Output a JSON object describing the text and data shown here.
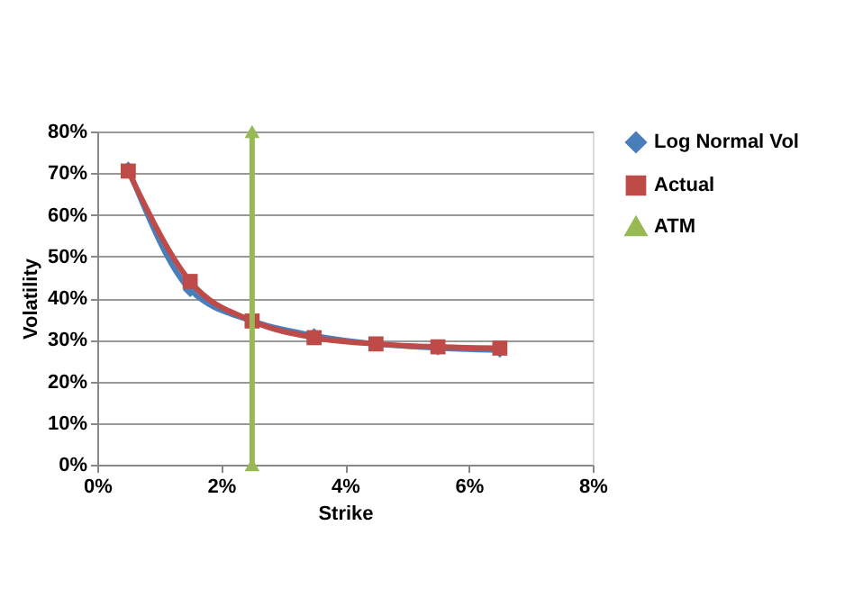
{
  "chart_data": {
    "type": "line",
    "xlabel": "Strike",
    "ylabel": "Volatility",
    "xlim": [
      0,
      8
    ],
    "xticks": [
      {
        "value": 0,
        "label": "0%"
      },
      {
        "value": 2,
        "label": "2%"
      },
      {
        "value": 4,
        "label": "4%"
      },
      {
        "value": 6,
        "label": "6%"
      },
      {
        "value": 8,
        "label": "8%"
      }
    ],
    "ylim": [
      0,
      80
    ],
    "yticks": [
      {
        "value": 0,
        "label": "0%"
      },
      {
        "value": 10,
        "label": "10%"
      },
      {
        "value": 20,
        "label": "20%"
      },
      {
        "value": 30,
        "label": "30%"
      },
      {
        "value": 40,
        "label": "40%"
      },
      {
        "value": 50,
        "label": "50%"
      },
      {
        "value": 60,
        "label": "60%"
      },
      {
        "value": 70,
        "label": "70%"
      },
      {
        "value": 80,
        "label": "80%"
      }
    ],
    "grid": "y",
    "legend": "right",
    "series": [
      {
        "name": "Log Normal Vol",
        "color": "#4a7ebb",
        "marker": "diamond",
        "x": [
          0.5,
          1.5,
          2.5,
          3.5,
          4.5,
          5.5,
          6.5
        ],
        "values": [
          71,
          42,
          34.5,
          31,
          29,
          28,
          27.5
        ]
      },
      {
        "name": "Actual",
        "color": "#be4b48",
        "marker": "square",
        "x": [
          0.5,
          1.5,
          2.5,
          3.5,
          4.5,
          5.5,
          6.5
        ],
        "values": [
          70.5,
          44,
          34.5,
          30.5,
          29,
          28.3,
          28
        ]
      },
      {
        "name": "ATM",
        "color": "#98b954",
        "marker": "triangle",
        "x": [
          2.5,
          2.5
        ],
        "values": [
          0,
          80
        ]
      }
    ]
  }
}
